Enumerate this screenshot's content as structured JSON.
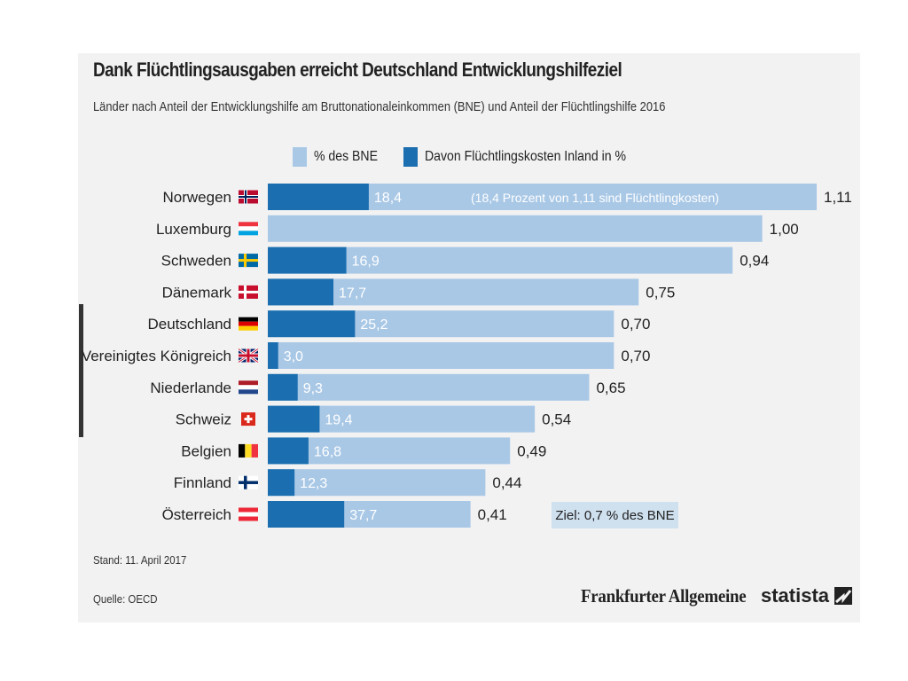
{
  "title": "Dank Flüchtlingsausgaben erreicht Deutschland Entwicklungshilfeziel",
  "subtitle": "Länder nach Anteil der Entwicklungshilfe am Bruttonationaleinkommen (BNE) und Anteil der Flüchtlingshilfe 2016",
  "legend": {
    "bne_label": "% des BNE",
    "refugee_label": "Davon Flüchtlingskosten Inland in %"
  },
  "annotation_norway": "(18,4 Prozent von 1,11 sind Flüchtlingkosten)",
  "goal_label": "Ziel: 0,7 % des BNE",
  "stand": "Stand: 11. April 2017",
  "source": "Quelle: OECD",
  "logos": {
    "faz": "Frankfurter Allgemeine",
    "statista": "statista"
  },
  "colors": {
    "bne": "#a9c8e6",
    "refugee": "#1b6fb0",
    "panel": "#f2f2f2",
    "goal_box": "#cfe0ef"
  },
  "chart_data": {
    "type": "bar",
    "orientation": "horizontal",
    "categories": [
      "Norwegen",
      "Luxemburg",
      "Schweden",
      "Dänemark",
      "Deutschland",
      "Vereinigtes Königreich",
      "Niederlande",
      "Schweiz",
      "Belgien",
      "Finnland",
      "Österreich"
    ],
    "flags": [
      "flag-norway-icon",
      "flag-luxembourg-icon",
      "flag-sweden-icon",
      "flag-denmark-icon",
      "flag-germany-icon",
      "flag-uk-icon",
      "flag-netherlands-icon",
      "flag-switzerland-icon",
      "flag-belgium-icon",
      "flag-finland-icon",
      "flag-austria-icon"
    ],
    "series": [
      {
        "name": "% des BNE",
        "values": [
          1.11,
          1.0,
          0.94,
          0.75,
          0.7,
          0.7,
          0.65,
          0.54,
          0.49,
          0.44,
          0.41
        ],
        "labels": [
          "1,11",
          "1,00",
          "0,94",
          "0,75",
          "0,70",
          "0,70",
          "0,65",
          "0,54",
          "0,49",
          "0,44",
          "0,41"
        ]
      },
      {
        "name": "Davon Flüchtlingskosten Inland in %",
        "values": [
          18.4,
          null,
          16.9,
          17.7,
          25.2,
          3.0,
          9.3,
          19.4,
          16.8,
          12.3,
          37.7
        ],
        "labels": [
          "18,4",
          "",
          "16,9",
          "17,7",
          "25,2",
          "3,0",
          "9,3",
          "19,4",
          "16,8",
          "12,3",
          "37,7"
        ]
      }
    ],
    "xlim": [
      0,
      1.11
    ],
    "grid": false,
    "legend_position": "top"
  }
}
